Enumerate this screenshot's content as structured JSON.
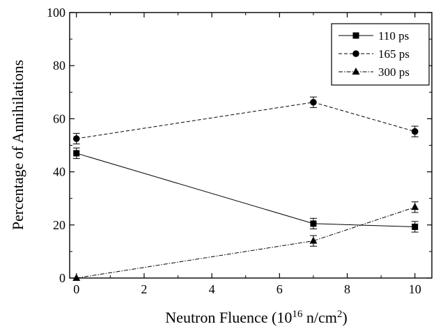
{
  "chart_data": {
    "type": "line",
    "title": "",
    "xlabel": "Neutron Fluence (10",
    "xlabel_sup1": "16",
    "xlabel_mid": " n/cm",
    "xlabel_sup2": "2",
    "xlabel_end": ")",
    "ylabel": "Percentage of Annihilations",
    "xlim": [
      -0.2,
      10.5
    ],
    "ylim": [
      0,
      100
    ],
    "xticks": [
      0,
      2,
      4,
      6,
      8,
      10
    ],
    "yticks": [
      0,
      20,
      40,
      60,
      80,
      100
    ],
    "grid": false,
    "legend_position": "top-right",
    "x": [
      0,
      7,
      10
    ],
    "series": [
      {
        "name": "110 ps",
        "marker": "square",
        "line": "solid",
        "values": [
          47,
          20.5,
          19.3
        ],
        "errors": [
          2,
          2,
          2
        ]
      },
      {
        "name": "165 ps",
        "marker": "circle",
        "line": "dashed",
        "values": [
          52.5,
          66.2,
          55.2
        ],
        "errors": [
          2,
          2,
          2
        ]
      },
      {
        "name": "300 ps",
        "marker": "triangle",
        "line": "dash-dot",
        "values": [
          0,
          14,
          26.7
        ],
        "errors": [
          0,
          2,
          2
        ]
      }
    ]
  }
}
